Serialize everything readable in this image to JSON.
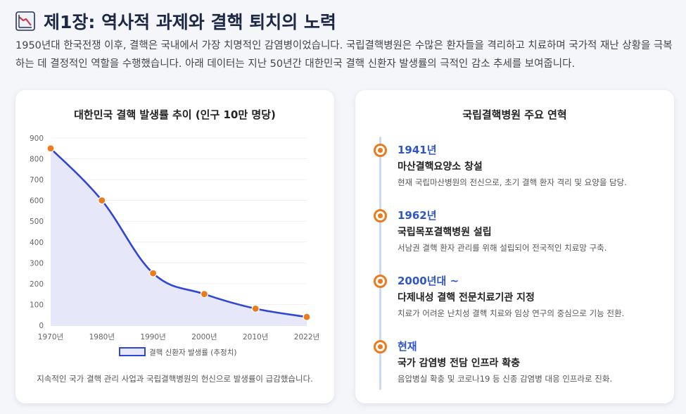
{
  "header": {
    "title": "제1장: 역사적 과제와 결핵 퇴치의 노력",
    "intro": "1950년대 한국전쟁 이후, 결핵은 국내에서 가장 치명적인 감염병이었습니다. 국립결핵병원은 수많은 환자들을 격리하고 치료하며 국가적 재난 상황을 극복하는 데 결정적인 역할을 수행했습니다. 아래 데이터는 지난 50년간 대한민국 결핵 신환자 발생률의 극적인 감소 추세를 보여줍니다."
  },
  "chart_card": {
    "note": "지속적인 국가 결핵 관리 사업과 국립결핵병원의 헌신으로 발생률이 급감했습니다."
  },
  "chart_data": {
    "type": "area",
    "title": "대한민국 결핵 발생률 추이 (인구 10만 명당)",
    "categories": [
      "1970년",
      "1980년",
      "1990년",
      "2000년",
      "2010년",
      "2022년"
    ],
    "series": [
      {
        "name": "결핵 신환자 발생률 (추정치)",
        "values": [
          850,
          600,
          250,
          150,
          80,
          40
        ]
      }
    ],
    "yticks": [
      0,
      100,
      200,
      300,
      400,
      500,
      600,
      700,
      800,
      900
    ],
    "ylim": [
      0,
      900
    ],
    "grid": true,
    "legend": "bottom",
    "colors": {
      "line": "#3046d6",
      "fill": "#e6e8fa",
      "point": "#ec7a1e"
    }
  },
  "timeline": {
    "title": "국립결핵병원 주요 연혁",
    "items": [
      {
        "year": "1941년",
        "head": "마산결핵요양소 창설",
        "desc": "현재 국립마산병원의 전신으로, 초기 결핵 환자 격리 및 요양을 담당."
      },
      {
        "year": "1962년",
        "head": "국립목포결핵병원 설립",
        "desc": "서남권 결핵 환자 관리를 위해 설립되어 전국적인 치료망 구축."
      },
      {
        "year": "2000년대 ~",
        "head": "다제내성 결핵 전문치료기관 지정",
        "desc": "치료가 어려운 난치성 결핵 치료와 임상 연구의 중심으로 기능 전환."
      },
      {
        "year": "현재",
        "head": "국가 감염병 전담 인프라 확충",
        "desc": "음압병실 확충 및 코로나19 등 신종 감염병 대응 인프라로 진화."
      }
    ]
  }
}
